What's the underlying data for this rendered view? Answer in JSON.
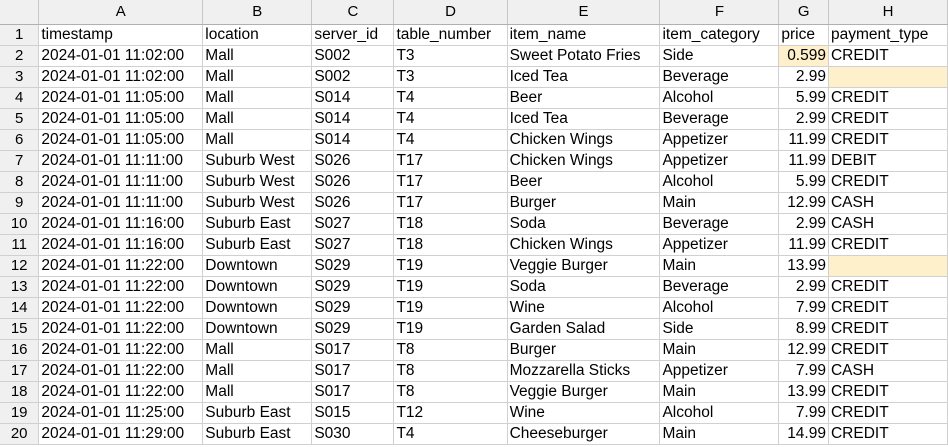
{
  "column_letters": [
    "A",
    "B",
    "C",
    "D",
    "E",
    "F",
    "G",
    "H"
  ],
  "rows": [
    {
      "n": "1",
      "cells": [
        "timestamp",
        "location",
        "server_id",
        "table_number",
        "item_name",
        "item_category",
        "price",
        "payment_type"
      ]
    },
    {
      "n": "2",
      "cells": [
        "2024-01-01 11:02:00",
        "Mall",
        "S002",
        "T3",
        "Sweet Potato Fries",
        "Side",
        "0.599",
        "CREDIT"
      ]
    },
    {
      "n": "3",
      "cells": [
        "2024-01-01 11:02:00",
        "Mall",
        "S002",
        "T3",
        "Iced Tea",
        "Beverage",
        "2.99",
        ""
      ]
    },
    {
      "n": "4",
      "cells": [
        "2024-01-01 11:05:00",
        "Mall",
        "S014",
        "T4",
        "Beer",
        "Alcohol",
        "5.99",
        "CREDIT"
      ]
    },
    {
      "n": "5",
      "cells": [
        "2024-01-01 11:05:00",
        "Mall",
        "S014",
        "T4",
        "Iced Tea",
        "Beverage",
        "2.99",
        "CREDIT"
      ]
    },
    {
      "n": "6",
      "cells": [
        "2024-01-01 11:05:00",
        "Mall",
        "S014",
        "T4",
        "Chicken Wings",
        "Appetizer",
        "11.99",
        "CREDIT"
      ]
    },
    {
      "n": "7",
      "cells": [
        "2024-01-01 11:11:00",
        "Suburb West",
        "S026",
        "T17",
        "Chicken Wings",
        "Appetizer",
        "11.99",
        "DEBIT"
      ]
    },
    {
      "n": "8",
      "cells": [
        "2024-01-01 11:11:00",
        "Suburb West",
        "S026",
        "T17",
        "Beer",
        "Alcohol",
        "5.99",
        "CREDIT"
      ]
    },
    {
      "n": "9",
      "cells": [
        "2024-01-01 11:11:00",
        "Suburb West",
        "S026",
        "T17",
        "Burger",
        "Main",
        "12.99",
        "CASH"
      ]
    },
    {
      "n": "10",
      "cells": [
        "2024-01-01 11:16:00",
        "Suburb East",
        "S027",
        "T18",
        "Soda",
        "Beverage",
        "2.99",
        "CASH"
      ]
    },
    {
      "n": "11",
      "cells": [
        "2024-01-01 11:16:00",
        "Suburb East",
        "S027",
        "T18",
        "Chicken Wings",
        "Appetizer",
        "11.99",
        "CREDIT"
      ]
    },
    {
      "n": "12",
      "cells": [
        "2024-01-01 11:22:00",
        "Downtown",
        "S029",
        "T19",
        "Veggie Burger",
        "Main",
        "13.99",
        ""
      ]
    },
    {
      "n": "13",
      "cells": [
        "2024-01-01 11:22:00",
        "Downtown",
        "S029",
        "T19",
        "Soda",
        "Beverage",
        "2.99",
        "CREDIT"
      ]
    },
    {
      "n": "14",
      "cells": [
        "2024-01-01 11:22:00",
        "Downtown",
        "S029",
        "T19",
        "Wine",
        "Alcohol",
        "7.99",
        "CREDIT"
      ]
    },
    {
      "n": "15",
      "cells": [
        "2024-01-01 11:22:00",
        "Downtown",
        "S029",
        "T19",
        "Garden Salad",
        "Side",
        "8.99",
        "CREDIT"
      ]
    },
    {
      "n": "16",
      "cells": [
        "2024-01-01 11:22:00",
        "Mall",
        "S017",
        "T8",
        "Burger",
        "Main",
        "12.99",
        "CREDIT"
      ]
    },
    {
      "n": "17",
      "cells": [
        "2024-01-01 11:22:00",
        "Mall",
        "S017",
        "T8",
        "Mozzarella Sticks",
        "Appetizer",
        "7.99",
        "CASH"
      ]
    },
    {
      "n": "18",
      "cells": [
        "2024-01-01 11:22:00",
        "Mall",
        "S017",
        "T8",
        "Veggie Burger",
        "Main",
        "13.99",
        "CREDIT"
      ]
    },
    {
      "n": "19",
      "cells": [
        "2024-01-01 11:25:00",
        "Suburb East",
        "S015",
        "T12",
        "Wine",
        "Alcohol",
        "7.99",
        "CREDIT"
      ]
    },
    {
      "n": "20",
      "cells": [
        "2024-01-01 11:29:00",
        "Suburb East",
        "S030",
        "T4",
        "Cheeseburger",
        "Main",
        "14.99",
        "CREDIT"
      ]
    }
  ],
  "highlighted_cells": [
    "G2",
    "H3",
    "H12"
  ],
  "highlight_color": "#fdf0cb",
  "numeric_columns": [
    "G"
  ]
}
